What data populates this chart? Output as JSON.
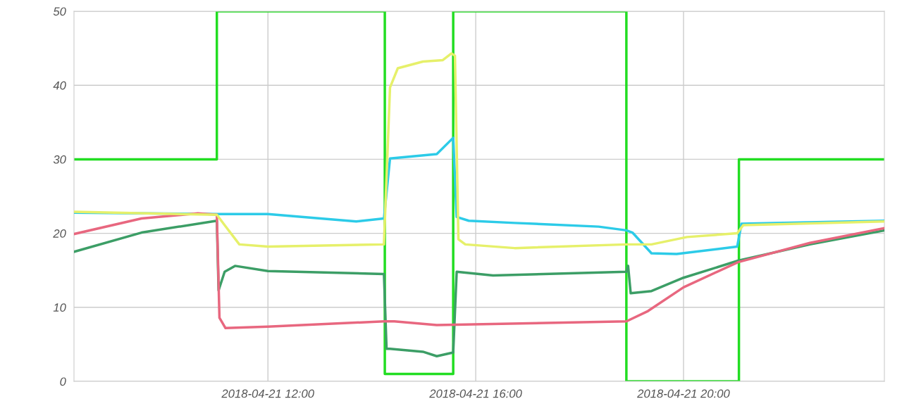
{
  "chart_data": {
    "type": "line",
    "xlim": [
      "2018-04-21T08:16",
      "2018-04-21T23:52"
    ],
    "xticks": [
      {
        "value": "2018-04-21T12:00",
        "label": "2018-04-21 12:00"
      },
      {
        "value": "2018-04-21T16:00",
        "label": "2018-04-21 16:00"
      },
      {
        "value": "2018-04-21T20:00",
        "label": "2018-04-21 20:00"
      }
    ],
    "ylim": [
      0,
      50
    ],
    "yticks": [
      0,
      10,
      20,
      30,
      40,
      50
    ],
    "grid": true,
    "marker": "none",
    "line_style": "solid",
    "series": [
      {
        "type": "step",
        "color": "#22dd22",
        "x": [
          "2018-04-21T08:16",
          "2018-04-21T11:01",
          "2018-04-21T14:15",
          "2018-04-21T15:34",
          "2018-04-21T18:54",
          "2018-04-21T21:04",
          "2018-04-21T23:52"
        ],
        "values": [
          30,
          50,
          1,
          50,
          0,
          30,
          30
        ]
      },
      {
        "color": "#2ccbe8",
        "x": [
          "2018-04-21T08:16",
          "2018-04-21T11:01",
          "2018-04-21T12:00",
          "2018-04-21T13:42",
          "2018-04-21T14:14",
          "2018-04-21T14:21",
          "2018-04-21T15:15",
          "2018-04-21T15:34",
          "2018-04-21T15:38",
          "2018-04-21T15:52",
          "2018-04-21T16:45",
          "2018-04-21T18:22",
          "2018-04-21T18:54",
          "2018-04-21T19:01",
          "2018-04-21T19:23",
          "2018-04-21T19:52",
          "2018-04-21T21:02",
          "2018-04-21T21:07",
          "2018-04-21T23:52"
        ],
        "values": [
          22.8,
          22.6,
          22.6,
          21.6,
          22.0,
          30.1,
          30.7,
          32.9,
          22.2,
          21.7,
          21.4,
          20.9,
          20.4,
          20.1,
          17.3,
          17.2,
          18.2,
          21.3,
          21.7
        ]
      },
      {
        "color": "#3c9e66",
        "x": [
          "2018-04-21T08:16",
          "2018-04-21T09:34",
          "2018-04-21T11:01",
          "2018-04-21T11:03",
          "2018-04-21T11:10",
          "2018-04-21T11:22",
          "2018-04-21T12:00",
          "2018-04-21T14:14",
          "2018-04-21T14:17",
          "2018-04-21T14:21",
          "2018-04-21T14:59",
          "2018-04-21T15:15",
          "2018-04-21T15:34",
          "2018-04-21T15:38",
          "2018-04-21T16:20",
          "2018-04-21T18:54",
          "2018-04-21T18:56",
          "2018-04-21T18:59",
          "2018-04-21T19:23",
          "2018-04-21T20:00",
          "2018-04-21T21:03",
          "2018-04-21T22:26",
          "2018-04-21T23:52"
        ],
        "values": [
          17.5,
          20.1,
          21.7,
          12.3,
          14.8,
          15.6,
          14.9,
          14.5,
          4.4,
          4.4,
          4.0,
          3.4,
          3.9,
          14.8,
          14.3,
          14.8,
          15.6,
          11.9,
          12.2,
          14.0,
          16.3,
          18.5,
          20.4
        ]
      },
      {
        "color": "#e8677f",
        "x": [
          "2018-04-21T08:16",
          "2018-04-21T09:34",
          "2018-04-21T10:39",
          "2018-04-21T11:01",
          "2018-04-21T11:04",
          "2018-04-21T11:11",
          "2018-04-21T12:00",
          "2018-04-21T14:14",
          "2018-04-21T14:26",
          "2018-04-21T15:15",
          "2018-04-21T18:54",
          "2018-04-21T19:19",
          "2018-04-21T20:00",
          "2018-04-21T21:03",
          "2018-04-21T22:26",
          "2018-04-21T23:52"
        ],
        "values": [
          19.9,
          22.0,
          22.7,
          22.5,
          8.6,
          7.2,
          7.4,
          8.1,
          8.1,
          7.6,
          8.1,
          9.5,
          12.7,
          16.1,
          18.7,
          20.7
        ]
      },
      {
        "color": "#e6f06a",
        "x": [
          "2018-04-21T08:16",
          "2018-04-21T11:01",
          "2018-04-21T11:10",
          "2018-04-21T11:27",
          "2018-04-21T12:00",
          "2018-04-21T14:14",
          "2018-04-21T14:21",
          "2018-04-21T14:30",
          "2018-04-21T14:59",
          "2018-04-21T15:22",
          "2018-04-21T15:32",
          "2018-04-21T15:36",
          "2018-04-21T15:40",
          "2018-04-21T15:48",
          "2018-04-21T16:45",
          "2018-04-21T18:54",
          "2018-04-21T19:23",
          "2018-04-21T20:04",
          "2018-04-21T21:02",
          "2018-04-21T21:09",
          "2018-04-21T23:52"
        ],
        "values": [
          22.9,
          22.5,
          21.1,
          18.5,
          18.2,
          18.5,
          39.7,
          42.3,
          43.2,
          43.4,
          44.3,
          44.0,
          19.2,
          18.5,
          18.0,
          18.5,
          18.5,
          19.5,
          20.0,
          21.1,
          21.6
        ]
      }
    ]
  }
}
